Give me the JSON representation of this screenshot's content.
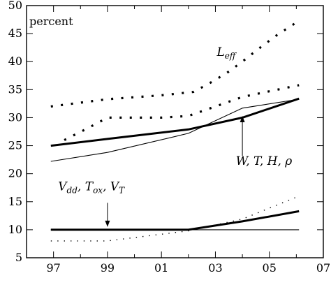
{
  "chart_data": {
    "type": "line",
    "ylabel_inside": "percent",
    "xlim": [
      1996,
      2007
    ],
    "ylim": [
      5,
      50
    ],
    "x_ticks": [
      1997,
      1998,
      1999,
      2000,
      2001,
      2002,
      2003,
      2004,
      2005,
      2006,
      2007
    ],
    "x_tick_labels": [
      "97",
      "",
      "99",
      "",
      "01",
      "",
      "03",
      "",
      "05",
      "",
      "07"
    ],
    "y_ticks": [
      5,
      10,
      15,
      20,
      25,
      30,
      35,
      40,
      45,
      50
    ],
    "y_tick_labels": [
      "5",
      "10",
      "15",
      "20",
      "25",
      "30",
      "35",
      "40",
      "45",
      "50"
    ],
    "grid": false,
    "series": [
      {
        "name": "L_eff",
        "style": "dotted-heavy",
        "color": "#000000",
        "points": [
          [
            1996.9,
            32.0
          ],
          [
            1999,
            33.3
          ],
          [
            2001,
            34.0
          ],
          [
            2002.2,
            34.6
          ],
          [
            2002.8,
            36.2
          ],
          [
            2003.4,
            37.9
          ],
          [
            2004,
            40.0
          ],
          [
            2004.6,
            42.3
          ],
          [
            2005.3,
            44.8
          ],
          [
            2006.1,
            47.3
          ]
        ]
      },
      {
        "name": "W, T, H, ρ (upper dotted)",
        "style": "dotted-heavy",
        "color": "#000000",
        "points": [
          [
            1997.4,
            26.0
          ],
          [
            1998.3,
            28.2
          ],
          [
            1999,
            30.0
          ],
          [
            2000,
            30.0
          ],
          [
            2001,
            30.0
          ],
          [
            2002,
            30.3
          ],
          [
            2003,
            32.0
          ],
          [
            2004,
            33.7
          ],
          [
            2005,
            34.7
          ],
          [
            2006.1,
            35.8
          ]
        ]
      },
      {
        "name": "W, T, H, ρ (thick solid)",
        "style": "solid-thick",
        "color": "#000000",
        "points": [
          [
            1996.9,
            25.0
          ],
          [
            1999,
            26.2
          ],
          [
            2002,
            27.9
          ],
          [
            2004,
            30.0
          ],
          [
            2006.1,
            33.4
          ]
        ]
      },
      {
        "name": "thin solid (upper)",
        "style": "solid-thin",
        "color": "#000000",
        "points": [
          [
            1996.9,
            22.2
          ],
          [
            1999,
            23.8
          ],
          [
            2002,
            27.2
          ],
          [
            2004,
            31.7
          ],
          [
            2006.1,
            33.3
          ]
        ]
      },
      {
        "name": "V_dd, T_ox, V_T (thick solid)",
        "style": "solid-thick",
        "color": "#000000",
        "points": [
          [
            1996.9,
            10.0
          ],
          [
            2002,
            10.0
          ],
          [
            2004,
            11.5
          ],
          [
            2006.1,
            13.3
          ]
        ]
      },
      {
        "name": "baseline thin solid",
        "style": "solid-thin",
        "color": "#000000",
        "points": [
          [
            1996.9,
            10.0
          ],
          [
            2006.1,
            10.0
          ]
        ]
      },
      {
        "name": "V_dd, T_ox, V_T (light dotted)",
        "style": "dotted-light",
        "color": "#000000",
        "points": [
          [
            1996.9,
            8.0
          ],
          [
            1999,
            8.0
          ],
          [
            2002,
            9.8
          ],
          [
            2004,
            11.9
          ],
          [
            2006.1,
            16.0
          ]
        ]
      }
    ],
    "annotations": [
      {
        "id": "leff",
        "text": "L_eff",
        "main": "L",
        "sub": "eff",
        "at": [
          2003.4,
          41.0
        ]
      },
      {
        "id": "wthr",
        "text": "W, T, H, ρ",
        "at": [
          2004.8,
          21.6
        ]
      },
      {
        "id": "vdd",
        "text": "V_dd, T_ox, V_T",
        "at": [
          1998.4,
          17.0
        ]
      }
    ],
    "arrows": [
      {
        "id": "arrow-wthr",
        "from": [
          2004,
          23.2
        ],
        "to": [
          2004,
          30.3
        ]
      },
      {
        "id": "arrow-vdd",
        "from": [
          1999,
          14.8
        ],
        "to": [
          1999,
          10.5
        ]
      }
    ]
  }
}
